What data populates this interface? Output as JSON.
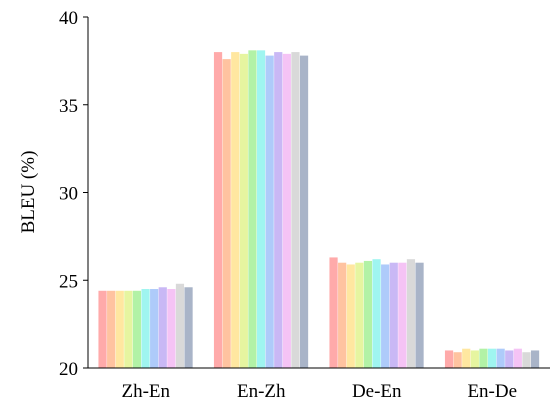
{
  "chart_data": {
    "type": "bar",
    "title": "",
    "xlabel": "",
    "ylabel": "BLEU (%)",
    "ylim": [
      20,
      40
    ],
    "yticks": [
      20,
      25,
      30,
      35,
      40
    ],
    "grid": false,
    "legend": "none",
    "categories": [
      "Zh-En",
      "En-Zh",
      "De-En",
      "En-De"
    ],
    "series": [
      {
        "color": "#FFAAAA",
        "values": [
          24.4,
          38.0,
          26.3,
          21.0
        ]
      },
      {
        "color": "#FFC3A0",
        "values": [
          24.4,
          37.6,
          26.0,
          20.9
        ]
      },
      {
        "color": "#FFE7A0",
        "values": [
          24.4,
          38.0,
          25.9,
          21.1
        ]
      },
      {
        "color": "#E6F5A0",
        "values": [
          24.4,
          37.9,
          26.0,
          21.0
        ]
      },
      {
        "color": "#B2F2A6",
        "values": [
          24.4,
          38.1,
          26.1,
          21.1
        ]
      },
      {
        "color": "#9FF5F0",
        "values": [
          24.5,
          38.1,
          26.2,
          21.1
        ]
      },
      {
        "color": "#AECBFA",
        "values": [
          24.5,
          37.8,
          25.9,
          21.1
        ]
      },
      {
        "color": "#C9B8F5",
        "values": [
          24.6,
          38.0,
          26.0,
          21.0
        ]
      },
      {
        "color": "#F5C3F5",
        "values": [
          24.5,
          37.9,
          26.0,
          21.1
        ]
      },
      {
        "color": "#D9D9D9",
        "values": [
          24.8,
          38.0,
          26.2,
          20.9
        ]
      },
      {
        "color": "#A9B4C8",
        "values": [
          24.6,
          37.8,
          26.0,
          21.0
        ]
      }
    ]
  }
}
